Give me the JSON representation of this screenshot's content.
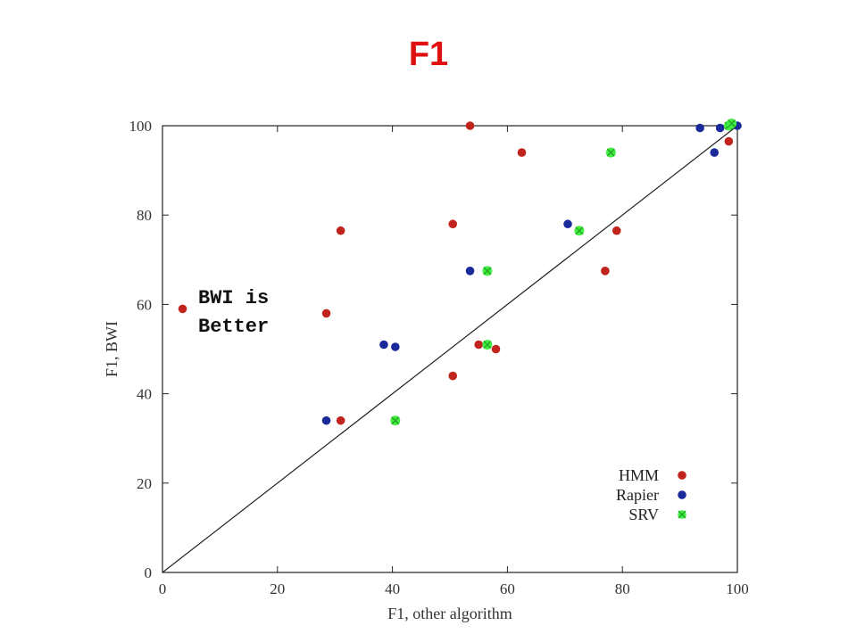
{
  "slide": {
    "title": "F1"
  },
  "chart_data": {
    "type": "scatter",
    "title": "",
    "xlabel": "F1, other algorithm",
    "ylabel": "F1, BWI",
    "xlim": [
      0,
      100
    ],
    "ylim": [
      0,
      100
    ],
    "xticks": [
      0,
      20,
      40,
      60,
      80,
      100
    ],
    "yticks": [
      0,
      20,
      40,
      60,
      80,
      100
    ],
    "grid": false,
    "diagonal_line": true,
    "legend_position": "bottom-right",
    "annotation": [
      "BWI is",
      "Better"
    ],
    "series": [
      {
        "name": "HMM",
        "color": "#c0241c",
        "points": [
          [
            3.5,
            59
          ],
          [
            28.5,
            58
          ],
          [
            31,
            34
          ],
          [
            31,
            76.5
          ],
          [
            50.5,
            78
          ],
          [
            50.5,
            44
          ],
          [
            53.5,
            100
          ],
          [
            55,
            51
          ],
          [
            58,
            50
          ],
          [
            62.5,
            94
          ],
          [
            77,
            67.5
          ],
          [
            79,
            76.5
          ],
          [
            98.5,
            96.5
          ]
        ]
      },
      {
        "name": "Rapier",
        "color": "#1a2a9a",
        "points": [
          [
            28.5,
            34
          ],
          [
            38.5,
            51
          ],
          [
            40.5,
            50.5
          ],
          [
            53.5,
            67.5
          ],
          [
            70.5,
            78
          ],
          [
            93.5,
            99.5
          ],
          [
            96,
            94
          ],
          [
            97,
            99.5
          ],
          [
            100,
            100
          ]
        ]
      },
      {
        "name": "SRV",
        "color": "#44ee44",
        "points": [
          [
            40.5,
            34
          ],
          [
            56.5,
            67.5
          ],
          [
            56.5,
            51
          ],
          [
            72.5,
            76.5
          ],
          [
            78,
            94
          ],
          [
            98.5,
            100
          ],
          [
            99,
            100.5
          ]
        ]
      }
    ]
  }
}
